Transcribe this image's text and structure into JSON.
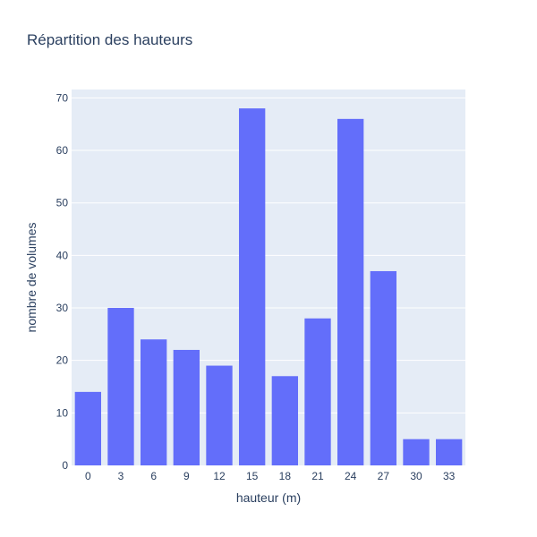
{
  "chart_data": {
    "type": "bar",
    "title": "Répartition des hauteurs",
    "xlabel": "hauteur (m)",
    "ylabel": "nombre de volumes",
    "categories": [
      "0",
      "3",
      "6",
      "9",
      "12",
      "15",
      "18",
      "21",
      "24",
      "27",
      "30",
      "33"
    ],
    "values": [
      14,
      30,
      24,
      22,
      19,
      68,
      17,
      28,
      66,
      37,
      5,
      5
    ],
    "ylim": [
      0,
      71.6
    ],
    "yticks": [
      0,
      10,
      20,
      30,
      40,
      50,
      60,
      70
    ],
    "grid": true,
    "colors": {
      "bar": "#636efa",
      "plot_background": "#e5ecf6",
      "gridline": "#ffffff",
      "text": "#2a3f5f"
    }
  }
}
